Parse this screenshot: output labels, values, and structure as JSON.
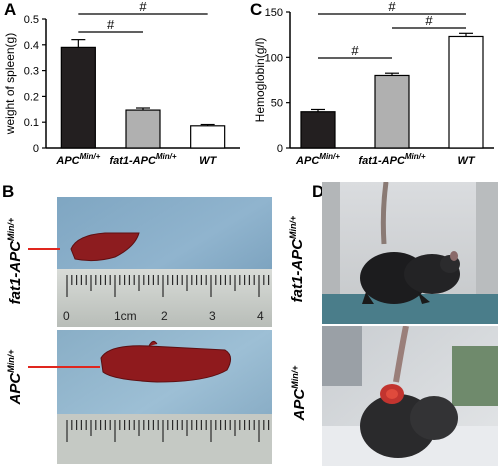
{
  "panels": {
    "a": "A",
    "b": "B",
    "c": "C",
    "d": "D"
  },
  "chart_data": [
    {
      "type": "bar",
      "panel": "A",
      "ylabel": "weight of spleen(g)",
      "ylim": [
        0,
        0.5
      ],
      "yticks": [
        "0",
        "0.1",
        "0.2",
        "0.3",
        "0.4",
        "0.5"
      ],
      "categories": [
        {
          "main": "APC",
          "sup": "Min/+"
        },
        {
          "main": "fat1-APC",
          "sup": "Min/+"
        },
        {
          "main": "WT",
          "sup": ""
        }
      ],
      "values": [
        0.39,
        0.147,
        0.086
      ],
      "errors": [
        0.03,
        0.008,
        0.005
      ],
      "colors": [
        "#231f20",
        "#b0b0b0",
        "#ffffff"
      ],
      "significance": [
        {
          "from": 0,
          "to": 1,
          "label": "#"
        },
        {
          "from": 0,
          "to": 2,
          "label": "#"
        }
      ]
    },
    {
      "type": "bar",
      "panel": "C",
      "ylabel": "Hemoglobin(g/l)",
      "ylim": [
        0,
        150
      ],
      "yticks": [
        "0",
        "50",
        "100",
        "150"
      ],
      "categories": [
        {
          "main": "APC",
          "sup": "Min/+"
        },
        {
          "main": "fat1-APC",
          "sup": "Min/+"
        },
        {
          "main": "WT",
          "sup": ""
        }
      ],
      "values": [
        40,
        80,
        123
      ],
      "errors": [
        2.5,
        2.5,
        3.5
      ],
      "colors": [
        "#231f20",
        "#b0b0b0",
        "#ffffff"
      ],
      "significance": [
        {
          "from": 0,
          "to": 1,
          "label": "#"
        },
        {
          "from": 1,
          "to": 2,
          "label": "#"
        },
        {
          "from": 0,
          "to": 2,
          "label": "#"
        }
      ]
    }
  ],
  "photos_b": {
    "top_label": {
      "main": "fat1-APC",
      "sup": "Min/+"
    },
    "bottom_label": {
      "main": "APC",
      "sup": "Min/+"
    },
    "ruler_numbers": [
      "0",
      "1cm",
      "2",
      "3",
      "4"
    ]
  },
  "photos_d": {
    "top_label": {
      "main": "fat1-APC",
      "sup": "Min/+"
    },
    "bottom_label": {
      "main": "APC",
      "sup": "Min/+"
    }
  }
}
